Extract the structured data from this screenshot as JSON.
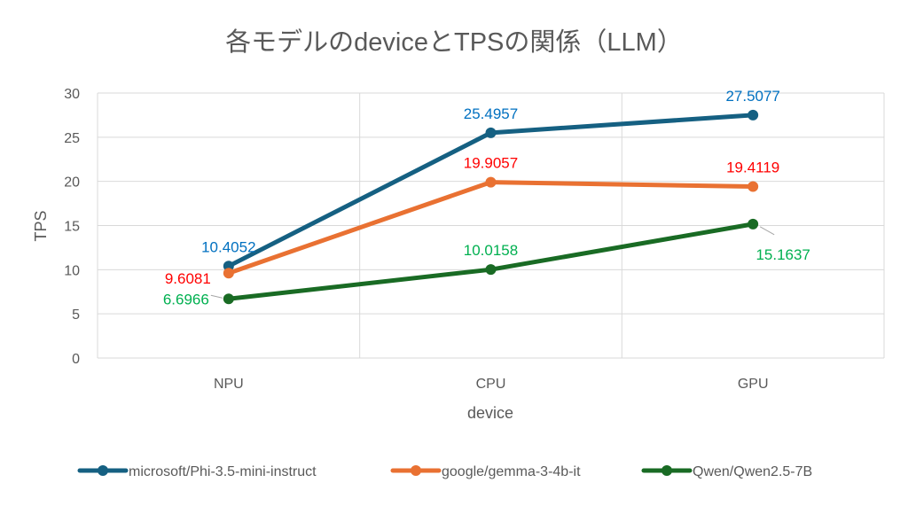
{
  "chart_data": {
    "type": "line",
    "title": "各モデルのdeviceとTPSの関係（LLM）",
    "xlabel": "device",
    "ylabel": "TPS",
    "categories": [
      "NPU",
      "CPU",
      "GPU"
    ],
    "ylim": [
      0,
      30
    ],
    "yticks": [
      0,
      5,
      10,
      15,
      20,
      25,
      30
    ],
    "ytick_labels": [
      "0",
      "5",
      "10",
      "15",
      "20",
      "25",
      "30"
    ],
    "grid": true,
    "legend_position": "bottom",
    "series": [
      {
        "name": "microsoft/Phi-3.5-mini-instruct",
        "values": [
          10.4052,
          25.4957,
          27.5077
        ],
        "labels": [
          "10.4052",
          "25.4957",
          "27.5077"
        ],
        "color": "#156082",
        "label_color": "#0070C0"
      },
      {
        "name": "google/gemma-3-4b-it",
        "values": [
          9.6081,
          19.9057,
          19.4119
        ],
        "labels": [
          "9.6081",
          "19.9057",
          "19.4119"
        ],
        "color": "#E97132",
        "label_color": "#FF0000"
      },
      {
        "name": "Qwen/Qwen2.5-7B",
        "values": [
          6.6966,
          10.0158,
          15.1637
        ],
        "labels": [
          "6.6966",
          "10.0158",
          "15.1637"
        ],
        "color": "#196B24",
        "label_color": "#00B050"
      }
    ]
  }
}
